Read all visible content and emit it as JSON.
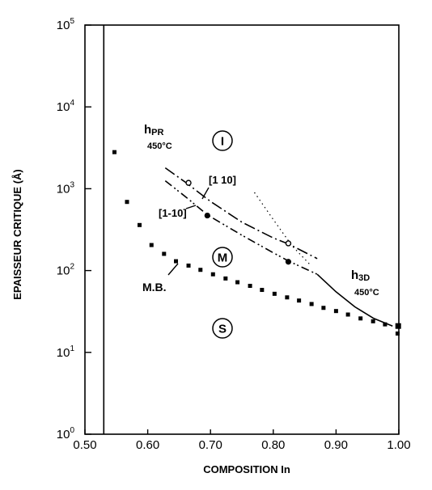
{
  "chart_data": {
    "type": "scatter",
    "xlabel": "COMPOSITION In",
    "ylabel": "EPAISSEUR CRITIQUE (Å)",
    "xlim": [
      0.5,
      1.0
    ],
    "ylim": [
      1,
      100000
    ],
    "y_scale": "log",
    "grid": false,
    "x_ticks": [
      "0.50",
      "0.60",
      "0.70",
      "0.80",
      "0.90",
      "1.00"
    ],
    "y_ticks": [
      {
        "base": "10",
        "exp": "0",
        "value": 1
      },
      {
        "base": "10",
        "exp": "1",
        "value": 10
      },
      {
        "base": "10",
        "exp": "2",
        "value": 100
      },
      {
        "base": "10",
        "exp": "3",
        "value": 1000
      },
      {
        "base": "10",
        "exp": "4",
        "value": 10000
      },
      {
        "base": "10",
        "exp": "5",
        "value": 100000
      }
    ],
    "vertical_line_x": 0.53,
    "series": [
      {
        "label_text": "M.B.",
        "style": "square-markers",
        "x": [
          0.547,
          0.567,
          0.587,
          0.606,
          0.626,
          0.645,
          0.665,
          0.684,
          0.704,
          0.724,
          0.743,
          0.763,
          0.782,
          0.802,
          0.822,
          0.841,
          0.861,
          0.88,
          0.9,
          0.919,
          0.939,
          0.959,
          0.978,
          0.998
        ],
        "y": [
          2800,
          690,
          360,
          205,
          160,
          130,
          115,
          102,
          90,
          80,
          72,
          65,
          58,
          52,
          47,
          43,
          39,
          35,
          32,
          29,
          26,
          24,
          22,
          17
        ]
      },
      {
        "label_text": "[1 10]",
        "style": "dash-dot",
        "x": [
          0.628,
          0.66,
          0.7,
          0.75,
          0.8,
          0.825,
          0.87
        ],
        "y": [
          1800,
          1200,
          700,
          390,
          250,
          210,
          140
        ]
      },
      {
        "label_text": "[1-10]",
        "style": "dash-dot-dot",
        "x": [
          0.628,
          0.66,
          0.695,
          0.75,
          0.8,
          0.825,
          0.87
        ],
        "y": [
          1250,
          800,
          480,
          270,
          165,
          130,
          90
        ]
      },
      {
        "label_text": "h3D 450°C",
        "style": "solid",
        "x": [
          0.87,
          0.9,
          0.93,
          0.96,
          0.99
        ],
        "y": [
          90,
          55,
          36,
          26,
          21
        ]
      },
      {
        "style": "dotted",
        "x": [
          0.77,
          0.8,
          0.83,
          0.86
        ],
        "y": [
          900,
          420,
          200,
          115
        ]
      }
    ],
    "points": [
      {
        "marker": "open-circle",
        "x": 0.665,
        "y": 1180
      },
      {
        "marker": "filled-circle",
        "x": 0.695,
        "y": 470
      },
      {
        "marker": "open-circle",
        "x": 0.824,
        "y": 215
      },
      {
        "marker": "filled-circle",
        "x": 0.824,
        "y": 128
      },
      {
        "marker": "filled-square",
        "x": 0.999,
        "y": 21
      }
    ],
    "annotations": {
      "hpr_main": "h",
      "hpr_sub": "PR",
      "hpr_temp": "450°C",
      "h3d_main": "h",
      "h3d_sub": "3D",
      "h3d_temp": "450°C",
      "mb": "M.B.",
      "l110": "[1 10]",
      "l1m10": "[1-10]",
      "region_I": "I",
      "region_M": "M",
      "region_S": "S"
    }
  }
}
